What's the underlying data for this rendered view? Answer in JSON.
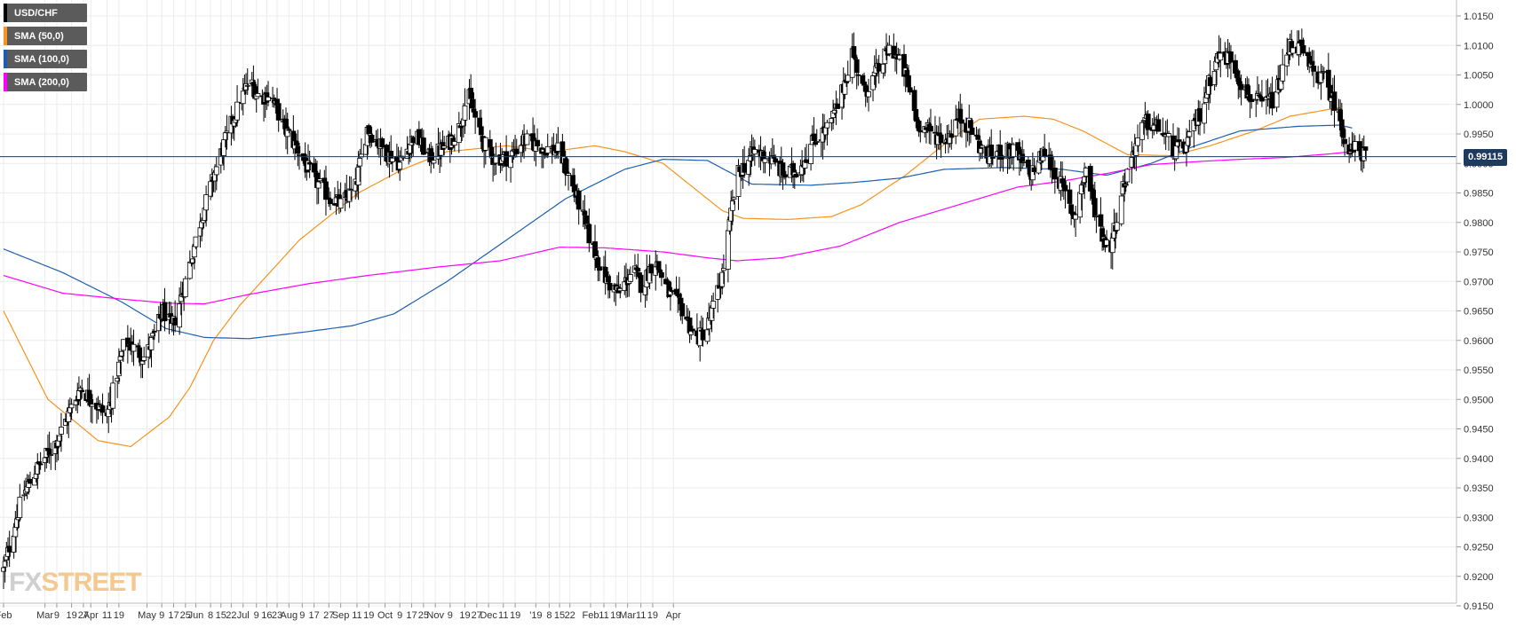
{
  "chart_data": {
    "type": "candlestick",
    "symbol": "USD/CHF",
    "ylim": [
      0.915,
      1.015
    ],
    "y_ticks": [
      "1.0150",
      "1.0100",
      "1.0050",
      "1.0000",
      "0.9950",
      "0.9900",
      "0.9850",
      "0.9800",
      "0.9750",
      "0.9700",
      "0.9650",
      "0.9600",
      "0.9550",
      "0.9500",
      "0.9450",
      "0.9400",
      "0.9350",
      "0.9300",
      "0.9250",
      "0.9200",
      "0.9150"
    ],
    "x_ticks": [
      "Feb",
      "Mar",
      "9",
      "19",
      "27",
      "Apr",
      "11",
      "19",
      "May",
      "9",
      "17",
      "25",
      "Jun",
      "8",
      "15",
      "22",
      "Jul",
      "9",
      "16",
      "23",
      "Aug",
      "9",
      "17",
      "27",
      "Sep",
      "11",
      "19",
      "Oct",
      "9",
      "17",
      "25",
      "Nov",
      "9",
      "19",
      "27",
      "Dec",
      "11",
      "19",
      "'19",
      "8",
      "15",
      "22",
      "Feb",
      "11",
      "19",
      "Mar",
      "11",
      "19",
      "Apr"
    ],
    "last_price": "0.99115",
    "last_price_value": 0.99115,
    "grid": true,
    "legend_position": "top-left",
    "colors": {
      "sma50": "#f7931e",
      "sma100": "#1c5fb0",
      "sma200": "#ff00ff",
      "candle_up": "#ffffff",
      "candle_down": "#000000",
      "price_line": "#1f3a5f",
      "grid": "#ececec",
      "legend_bg": "#5b5b5b"
    },
    "legend": [
      {
        "label": "USD/CHF",
        "color": "#000000"
      },
      {
        "label": "SMA (50,0)",
        "color": "#f7931e"
      },
      {
        "label": "SMA (100,0)",
        "color": "#1c5fb0"
      },
      {
        "label": "SMA (200,0)",
        "color": "#ff00ff"
      }
    ],
    "price_anchors": [
      [
        0,
        0.921
      ],
      [
        12,
        0.933
      ],
      [
        22,
        0.938
      ],
      [
        36,
        0.943
      ],
      [
        52,
        0.952
      ],
      [
        60,
        0.95
      ],
      [
        70,
        0.947
      ],
      [
        82,
        0.96
      ],
      [
        96,
        0.957
      ],
      [
        108,
        0.965
      ],
      [
        114,
        0.962
      ],
      [
        122,
        0.969
      ],
      [
        134,
        0.981
      ],
      [
        146,
        0.991
      ],
      [
        156,
        0.998
      ],
      [
        166,
        1.004
      ],
      [
        174,
        1.001
      ],
      [
        180,
        1.002
      ],
      [
        190,
        0.996
      ],
      [
        200,
        0.992
      ],
      [
        208,
        0.988
      ],
      [
        218,
        0.985
      ],
      [
        228,
        0.983
      ],
      [
        238,
        0.986
      ],
      [
        246,
        0.996
      ],
      [
        258,
        0.992
      ],
      [
        268,
        0.99
      ],
      [
        278,
        0.995
      ],
      [
        288,
        0.991
      ],
      [
        300,
        0.993
      ],
      [
        308,
        0.996
      ],
      [
        314,
        1.002
      ],
      [
        322,
        0.995
      ],
      [
        330,
        0.991
      ],
      [
        342,
        0.991
      ],
      [
        352,
        0.994
      ],
      [
        362,
        0.993
      ],
      [
        376,
        0.992
      ],
      [
        388,
        0.984
      ],
      [
        398,
        0.976
      ],
      [
        408,
        0.97
      ],
      [
        416,
        0.968
      ],
      [
        426,
        0.972
      ],
      [
        432,
        0.969
      ],
      [
        440,
        0.974
      ],
      [
        450,
        0.968
      ],
      [
        460,
        0.965
      ],
      [
        468,
        0.96
      ],
      [
        476,
        0.962
      ],
      [
        486,
        0.971
      ],
      [
        496,
        0.988
      ],
      [
        508,
        0.992
      ],
      [
        518,
        0.991
      ],
      [
        528,
        0.988
      ],
      [
        538,
        0.989
      ],
      [
        548,
        0.994
      ],
      [
        558,
        0.996
      ],
      [
        566,
        1.001
      ],
      [
        574,
        1.009
      ],
      [
        582,
        1.002
      ],
      [
        592,
        1.006
      ],
      [
        600,
        1.01
      ],
      [
        610,
        1.005
      ],
      [
        618,
        0.997
      ],
      [
        628,
        0.995
      ],
      [
        638,
        0.994
      ],
      [
        646,
        0.998
      ],
      [
        654,
        0.996
      ],
      [
        664,
        0.991
      ],
      [
        674,
        0.992
      ],
      [
        684,
        0.992
      ],
      [
        694,
        0.988
      ],
      [
        704,
        0.992
      ],
      [
        714,
        0.987
      ],
      [
        724,
        0.981
      ],
      [
        732,
        0.989
      ],
      [
        740,
        0.98
      ],
      [
        748,
        0.975
      ],
      [
        756,
        0.985
      ],
      [
        764,
        0.992
      ],
      [
        772,
        0.997
      ],
      [
        782,
        0.996
      ],
      [
        792,
        0.992
      ],
      [
        800,
        0.993
      ],
      [
        810,
        0.999
      ],
      [
        820,
        1.008
      ],
      [
        830,
        1.008
      ],
      [
        840,
        1.002
      ],
      [
        850,
        1.0
      ],
      [
        860,
        1.001
      ],
      [
        870,
        1.01
      ],
      [
        876,
        1.01
      ],
      [
        884,
        1.006
      ],
      [
        894,
        1.004
      ],
      [
        902,
        0.999
      ],
      [
        910,
        0.992
      ],
      [
        916,
        0.9925
      ],
      [
        922,
        0.99115
      ]
    ],
    "sma50_anchors": [
      [
        0,
        0.965
      ],
      [
        30,
        0.95
      ],
      [
        64,
        0.943
      ],
      [
        86,
        0.942
      ],
      [
        112,
        0.947
      ],
      [
        126,
        0.952
      ],
      [
        142,
        0.96
      ],
      [
        160,
        0.966
      ],
      [
        200,
        0.977
      ],
      [
        240,
        0.985
      ],
      [
        270,
        0.989
      ],
      [
        300,
        0.992
      ],
      [
        340,
        0.993
      ],
      [
        370,
        0.992
      ],
      [
        400,
        0.993
      ],
      [
        420,
        0.992
      ],
      [
        446,
        0.99
      ],
      [
        466,
        0.986
      ],
      [
        486,
        0.982
      ],
      [
        500,
        0.9807
      ],
      [
        530,
        0.9805
      ],
      [
        560,
        0.981
      ],
      [
        580,
        0.983
      ],
      [
        610,
        0.988
      ],
      [
        640,
        0.994
      ],
      [
        660,
        0.9975
      ],
      [
        690,
        0.998
      ],
      [
        710,
        0.9975
      ],
      [
        730,
        0.9955
      ],
      [
        760,
        0.9915
      ],
      [
        790,
        0.9913
      ],
      [
        816,
        0.993
      ],
      [
        846,
        0.9955
      ],
      [
        870,
        0.998
      ],
      [
        904,
        0.9995
      ]
    ],
    "sma100_anchors": [
      [
        0,
        0.9755
      ],
      [
        40,
        0.9715
      ],
      [
        80,
        0.9665
      ],
      [
        110,
        0.962
      ],
      [
        136,
        0.9605
      ],
      [
        166,
        0.9603
      ],
      [
        206,
        0.9615
      ],
      [
        236,
        0.9625
      ],
      [
        264,
        0.9645
      ],
      [
        300,
        0.97
      ],
      [
        340,
        0.977
      ],
      [
        380,
        0.984
      ],
      [
        420,
        0.989
      ],
      [
        446,
        0.9907
      ],
      [
        476,
        0.9905
      ],
      [
        506,
        0.9865
      ],
      [
        546,
        0.9863
      ],
      [
        576,
        0.9868
      ],
      [
        606,
        0.9875
      ],
      [
        636,
        0.989
      ],
      [
        676,
        0.9893
      ],
      [
        716,
        0.989
      ],
      [
        746,
        0.988
      ],
      [
        776,
        0.99
      ],
      [
        806,
        0.993
      ],
      [
        836,
        0.9955
      ],
      [
        876,
        0.9963
      ],
      [
        904,
        0.9965
      ],
      [
        912,
        0.996
      ]
    ],
    "sma200_anchors": [
      [
        0,
        0.971
      ],
      [
        40,
        0.968
      ],
      [
        80,
        0.967
      ],
      [
        112,
        0.9663
      ],
      [
        136,
        0.9662
      ],
      [
        166,
        0.9678
      ],
      [
        206,
        0.9696
      ],
      [
        246,
        0.971
      ],
      [
        296,
        0.9725
      ],
      [
        336,
        0.9735
      ],
      [
        376,
        0.9758
      ],
      [
        406,
        0.9757
      ],
      [
        446,
        0.975
      ],
      [
        476,
        0.974
      ],
      [
        496,
        0.9735
      ],
      [
        526,
        0.974
      ],
      [
        566,
        0.976
      ],
      [
        606,
        0.98
      ],
      [
        646,
        0.983
      ],
      [
        686,
        0.986
      ],
      [
        716,
        0.987
      ],
      [
        746,
        0.9883
      ],
      [
        776,
        0.9898
      ],
      [
        806,
        0.9903
      ],
      [
        836,
        0.9907
      ],
      [
        866,
        0.991
      ],
      [
        896,
        0.9916
      ],
      [
        912,
        0.992
      ]
    ]
  },
  "watermark": {
    "fx": "FX",
    "street": "STREET"
  }
}
